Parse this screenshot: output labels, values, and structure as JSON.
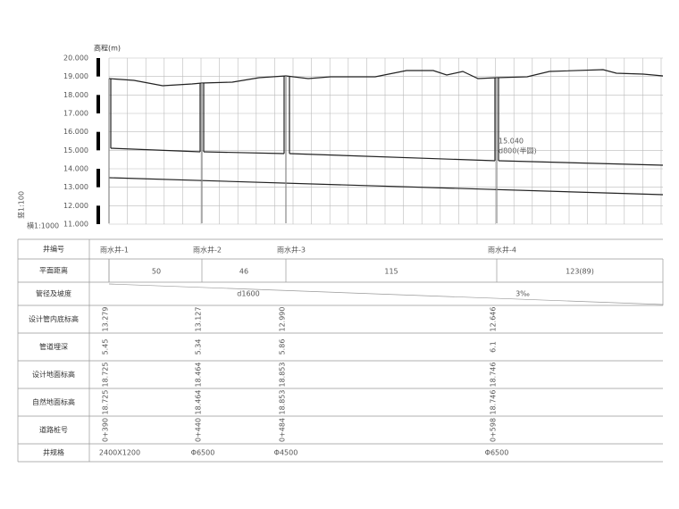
{
  "profile": {
    "y_label": "高程(m)",
    "scale_vertical": "竖1:100",
    "scale_horizontal": "横1:1000",
    "yticks": [
      {
        "value": 20,
        "label": "20.000"
      },
      {
        "value": 19,
        "label": "19.000"
      },
      {
        "value": 18,
        "label": "18.000"
      },
      {
        "value": 17,
        "label": "17.000"
      },
      {
        "value": 16,
        "label": "16.000"
      },
      {
        "value": 15,
        "label": "15.000"
      },
      {
        "value": 14,
        "label": "14.000"
      },
      {
        "value": 13,
        "label": "13.000"
      },
      {
        "value": 12,
        "label": "12.000"
      },
      {
        "value": 11,
        "label": "11.000"
      }
    ],
    "ylim": [
      11,
      20
    ],
    "annotations": [
      "15.040",
      "d800(半圆)"
    ]
  },
  "table": {
    "row_labels": [
      "井编号",
      "平面距离",
      "管径及坡度",
      "设计管内底标高",
      "管道埋深",
      "设计地面标高",
      "自然地面标高",
      "道路桩号",
      "井规格"
    ],
    "well_ids": [
      "雨水井-1",
      "雨水井-2",
      "雨水井-3",
      "雨水井-4"
    ],
    "distances": [
      "50",
      "46",
      "115",
      "123(89)"
    ],
    "pipe": [
      "d1600",
      "3‰"
    ],
    "invert": [
      "13.279",
      "13.127",
      "12.990",
      "12.646"
    ],
    "depth": [
      "5.45",
      "5.34",
      "5.86",
      "6.1"
    ],
    "design_ground": [
      "18.725",
      "18.464",
      "18.853",
      "18.746"
    ],
    "natural_ground": [
      "18.725",
      "18.464",
      "18.853",
      "18.746"
    ],
    "station": [
      "0+390",
      "0+440",
      "0+484",
      "0+598"
    ],
    "well_spec": [
      "2400X1200",
      "Φ6500",
      "Φ4500",
      "Φ6500"
    ]
  }
}
